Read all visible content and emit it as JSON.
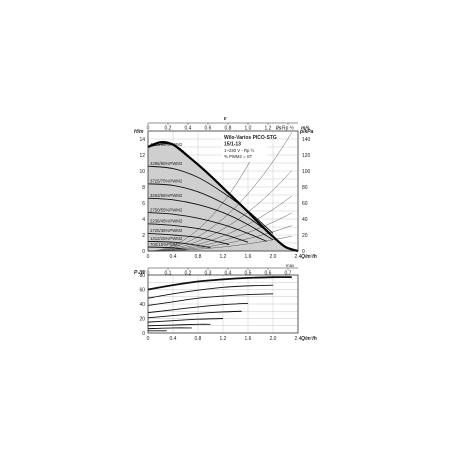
{
  "chart_data": [
    {
      "type": "line",
      "chart": "head-flow",
      "title": "Wilo-Varios PICO-STG 15/1-13",
      "subtitle_lines": [
        "1~230 V - Rp ½",
        "% PWM2 = ST"
      ],
      "ylabel": "H/m",
      "y2label": "p/kPa",
      "xlabel": "Q/m³/h",
      "top_axis_label": "v",
      "top_axis_unit_left": "l/s",
      "top_axis_unit_right": "m/s",
      "top_axis_ticks": [
        "0",
        "0.2",
        "0.4",
        "0.6",
        "0.8",
        "1.0",
        "1.2",
        "Rp ½"
      ],
      "xlim": [
        0,
        2.4
      ],
      "ylim": [
        0,
        15
      ],
      "y2lim": [
        0,
        150
      ],
      "xticks": [
        "0",
        "0.4",
        "0.8",
        "1.2",
        "1.6",
        "2.0",
        "2.4"
      ],
      "yticks": [
        "0",
        "2",
        "4",
        "6",
        "8",
        "10",
        "12",
        "14"
      ],
      "y2ticks": [
        "0",
        "20",
        "40",
        "60",
        "80",
        "100",
        "120",
        "140"
      ],
      "envelope_max": {
        "x": [
          0,
          0.2,
          0.4,
          0.6,
          0.8,
          1.0,
          1.2,
          1.4,
          1.6,
          1.8,
          2.0,
          2.2,
          2.4
        ],
        "y": [
          13.0,
          13.6,
          13.3,
          12.1,
          10.8,
          9.4,
          7.9,
          6.4,
          4.9,
          3.3,
          1.8,
          0.5,
          0
        ]
      },
      "series": [
        {
          "name": "4800/95%PWM2",
          "x": [
            0,
            0.4,
            0.8,
            1.2,
            1.6
          ],
          "y": [
            13.0,
            13.3,
            10.8,
            7.9,
            4.9
          ]
        },
        {
          "name": "4286/85%PWM2",
          "x": [
            0,
            0.4,
            0.8,
            1.2,
            1.6,
            2.0
          ],
          "y": [
            10.6,
            10.3,
            9.2,
            7.3,
            5.0,
            2.2
          ]
        },
        {
          "name": "3725/75%PWM2",
          "x": [
            0,
            0.4,
            0.8,
            1.2,
            1.6,
            2.0
          ],
          "y": [
            8.4,
            8.2,
            7.4,
            6.0,
            4.2,
            1.9
          ]
        },
        {
          "name": "3263/65%PWM2",
          "x": [
            0,
            0.4,
            0.8,
            1.2,
            1.6,
            2.0
          ],
          "y": [
            6.6,
            6.4,
            5.8,
            4.8,
            3.3,
            1.4
          ]
        },
        {
          "name": "2750/55%PWM2",
          "x": [
            0,
            0.4,
            0.8,
            1.2,
            1.6,
            1.9
          ],
          "y": [
            4.8,
            4.6,
            4.1,
            3.3,
            2.2,
            1.2
          ]
        },
        {
          "name": "2236/45%PWM2",
          "x": [
            0,
            0.4,
            0.8,
            1.2,
            1.6
          ],
          "y": [
            3.4,
            3.2,
            2.8,
            2.1,
            1.1
          ]
        },
        {
          "name": "1725/35%PWM2",
          "x": [
            0,
            0.4,
            0.8,
            1.2,
            1.3
          ],
          "y": [
            2.2,
            2.0,
            1.7,
            1.0,
            0.8
          ]
        },
        {
          "name": "1212/25%PWM2",
          "x": [
            0,
            0.4,
            0.8,
            1.0
          ],
          "y": [
            1.2,
            1.1,
            0.7,
            0.4
          ]
        },
        {
          "name": "700/15%PWM2",
          "x": [
            0,
            0.4,
            0.6
          ],
          "y": [
            0.5,
            0.4,
            0.2
          ]
        }
      ]
    },
    {
      "type": "line",
      "chart": "power-flow",
      "ylabel": "P₁/W",
      "xlabel": "Q/m³/h",
      "top_axis_unit_right": "max",
      "top_axis_ticks": [
        "0",
        "0.1",
        "0.2",
        "0.3",
        "0.4",
        "0.5",
        "0.6",
        "0.7"
      ],
      "xlim": [
        0,
        2.4
      ],
      "ylim": [
        0,
        80
      ],
      "xticks": [
        "0",
        "0.4",
        "0.8",
        "1.2",
        "1.6",
        "2.0",
        "2.4"
      ],
      "yticks": [
        "0",
        "20",
        "40",
        "60",
        "80"
      ],
      "series": [
        {
          "x": [
            0,
            0.4,
            0.8,
            1.2,
            1.6,
            2.0,
            2.3
          ],
          "y": [
            60,
            66,
            71,
            74,
            76,
            77,
            77
          ]
        },
        {
          "x": [
            0,
            0.4,
            0.8,
            1.2,
            1.6,
            2.0
          ],
          "y": [
            48,
            54,
            59,
            63,
            65,
            66
          ]
        },
        {
          "x": [
            0,
            0.4,
            0.8,
            1.2,
            1.6,
            2.0
          ],
          "y": [
            38,
            43,
            48,
            51,
            53,
            54
          ]
        },
        {
          "x": [
            0,
            0.4,
            0.8,
            1.2,
            1.6
          ],
          "y": [
            28,
            32,
            36,
            39,
            41
          ]
        },
        {
          "x": [
            0,
            0.4,
            0.8,
            1.2,
            1.5
          ],
          "y": [
            21,
            24,
            27,
            29,
            30
          ]
        },
        {
          "x": [
            0,
            0.4,
            0.8,
            1.2
          ],
          "y": [
            15,
            17,
            19,
            20
          ]
        },
        {
          "x": [
            0,
            0.4,
            0.8,
            1.0
          ],
          "y": [
            10,
            11,
            12,
            12
          ]
        },
        {
          "x": [
            0,
            0.4,
            0.7
          ],
          "y": [
            6,
            7,
            7
          ]
        },
        {
          "x": [
            0,
            0.3
          ],
          "y": [
            3,
            3
          ]
        }
      ]
    }
  ]
}
